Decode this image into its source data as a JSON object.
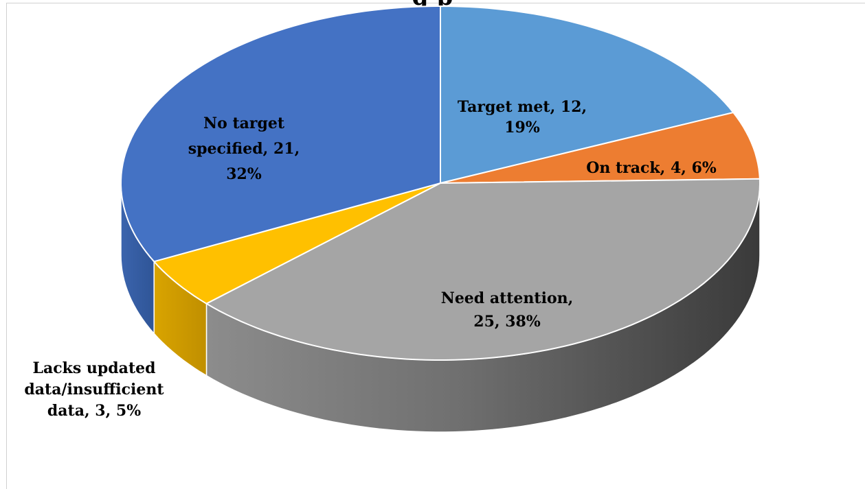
{
  "chart_data": {
    "type": "pie",
    "title": "",
    "title_visible_fragment": "g p",
    "slices": [
      {
        "name": "Target met",
        "value": 12,
        "percent": 19,
        "color": "#5b9bd5",
        "label_lines": [
          "Target met, 12,",
          "19%"
        ]
      },
      {
        "name": "On track",
        "value": 4,
        "percent": 6,
        "color": "#ed7d31",
        "label_lines": [
          "On track, 4, 6%"
        ]
      },
      {
        "name": "Need attention",
        "value": 25,
        "percent": 38,
        "color": "#a5a5a5",
        "label_lines": [
          "Need attention,",
          "25, 38%"
        ]
      },
      {
        "name": "Lacks updated data/insufficient data",
        "value": 3,
        "percent": 5,
        "color": "#ffc000",
        "label_lines": [
          "Lacks updated",
          "data/insufficient",
          "data, 3, 5%"
        ]
      },
      {
        "name": "No target specified",
        "value": 21,
        "percent": 32,
        "color": "#4472c4",
        "label_lines": [
          "No target",
          "specified, 21,",
          "32%"
        ]
      }
    ],
    "legend": "none",
    "style": "3d-pie"
  }
}
